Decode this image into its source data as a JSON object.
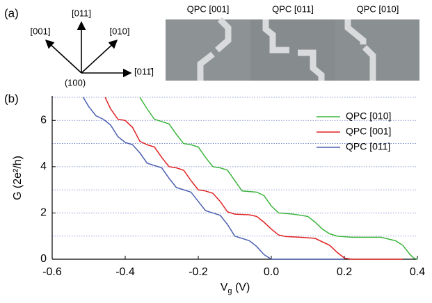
{
  "panel_a": {
    "label": "(a)",
    "directions": {
      "up": "[011]",
      "left": "[001]",
      "right_up": "[010]",
      "right": "[011̄]",
      "origin": "(100)"
    },
    "images": [
      "QPC [001]",
      "QPC [011]",
      "QPC [010]"
    ]
  },
  "chart_data": {
    "type": "line",
    "panel_label": "(b)",
    "xlabel": {
      "main": "V",
      "sub": "g",
      "unit": " (V)"
    },
    "ylabel": "G (2e²/h)",
    "xlim": [
      -0.6,
      0.4
    ],
    "xticks": [
      -0.6,
      -0.4,
      -0.2,
      {
        "value": 0,
        "label": "0.0"
      },
      0.2,
      0.4
    ],
    "ylim": [
      0,
      7
    ],
    "yticks": [
      0,
      2,
      4,
      6
    ],
    "minor_yticks": [
      1,
      3,
      5,
      7
    ],
    "grid": true,
    "legend": "upper right",
    "series": [
      {
        "name": "QPC [010]",
        "color": "#3cb43c",
        "x": [
          -0.36,
          -0.34,
          -0.32,
          -0.3,
          -0.28,
          -0.26,
          -0.24,
          -0.22,
          -0.2,
          -0.18,
          -0.16,
          -0.14,
          -0.12,
          -0.1,
          -0.08,
          -0.04,
          -0.02,
          0.0,
          0.02,
          0.06,
          0.1,
          0.12,
          0.14,
          0.16,
          0.18,
          0.22,
          0.3,
          0.34,
          0.36,
          0.38,
          0.39,
          0.4
        ],
        "values": [
          7.0,
          6.5,
          6.05,
          5.95,
          5.85,
          5.4,
          5.0,
          4.95,
          4.85,
          4.4,
          4.0,
          3.95,
          3.85,
          3.4,
          2.95,
          2.9,
          2.75,
          2.3,
          2.0,
          1.95,
          1.85,
          1.6,
          1.3,
          1.1,
          1.0,
          0.95,
          0.95,
          0.8,
          0.6,
          0.2,
          0.05,
          0.0
        ]
      },
      {
        "name": "QPC [001]",
        "color": "#e02020",
        "x": [
          -0.455,
          -0.44,
          -0.42,
          -0.4,
          -0.38,
          -0.36,
          -0.34,
          -0.32,
          -0.3,
          -0.28,
          -0.26,
          -0.24,
          -0.22,
          -0.2,
          -0.18,
          -0.16,
          -0.14,
          -0.12,
          -0.1,
          -0.06,
          -0.04,
          -0.02,
          0.0,
          0.02,
          0.04,
          0.08,
          0.12,
          0.16,
          0.18,
          0.2,
          0.22,
          0.3,
          0.36
        ],
        "values": [
          7.0,
          6.5,
          6.05,
          6.0,
          5.7,
          5.1,
          4.95,
          4.85,
          4.4,
          4.0,
          3.95,
          3.85,
          3.4,
          3.0,
          2.95,
          2.85,
          2.5,
          2.05,
          1.95,
          1.92,
          1.85,
          1.6,
          1.3,
          1.05,
          0.98,
          0.95,
          0.9,
          0.6,
          0.3,
          0.05,
          0.0,
          0.0,
          0.0
        ]
      },
      {
        "name": "QPC [011]",
        "color": "#4a5fb0",
        "x": [
          -0.515,
          -0.5,
          -0.48,
          -0.46,
          -0.44,
          -0.42,
          -0.4,
          -0.38,
          -0.36,
          -0.34,
          -0.32,
          -0.3,
          -0.28,
          -0.26,
          -0.24,
          -0.22,
          -0.2,
          -0.18,
          -0.16,
          -0.14,
          -0.12,
          -0.1,
          -0.08,
          -0.06,
          -0.04,
          -0.02,
          0.0,
          0.2
        ],
        "values": [
          7.0,
          6.6,
          6.2,
          6.05,
          5.8,
          5.3,
          5.05,
          4.95,
          4.6,
          4.15,
          4.05,
          3.95,
          3.5,
          3.1,
          3.0,
          2.9,
          2.5,
          2.1,
          2.0,
          1.9,
          1.5,
          1.0,
          0.9,
          0.8,
          0.55,
          0.2,
          0.0,
          0.0
        ]
      }
    ]
  }
}
